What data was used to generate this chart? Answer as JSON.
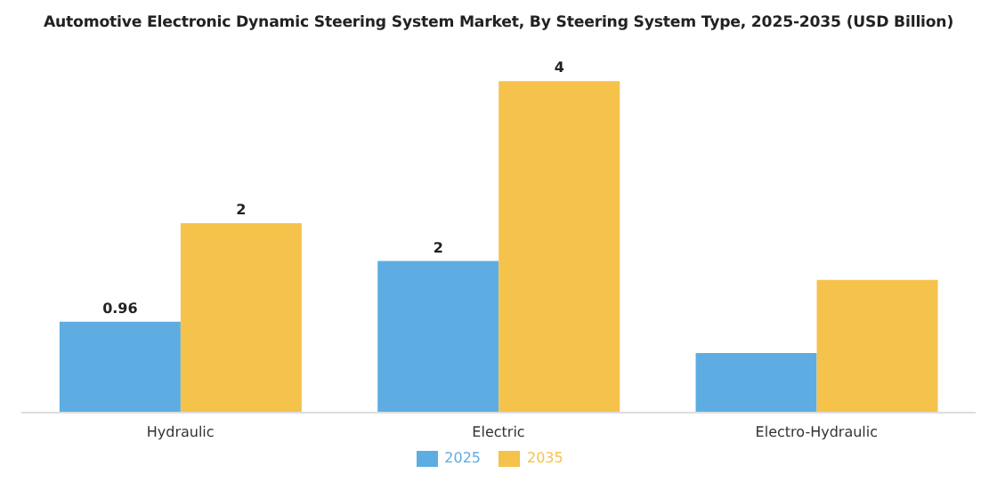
{
  "chart_data": {
    "type": "bar",
    "title": "Automotive Electronic Dynamic Steering System Market, By Steering System Type, 2025-2035 (USD Billion)",
    "categories": [
      "Hydraulic",
      "Electric",
      "Electro-Hydraulic"
    ],
    "series": [
      {
        "name": "2025",
        "color": "#5dade2",
        "values": [
          0.96,
          1.6,
          0.63
        ],
        "value_labels": [
          "0.96",
          "2",
          null
        ]
      },
      {
        "name": "2035",
        "color": "#f5c24c",
        "values": [
          2.0,
          3.5,
          1.4
        ],
        "value_labels": [
          "2",
          "4",
          null
        ]
      }
    ],
    "tick_labels": "x",
    "legend": "bottom",
    "grid": false
  }
}
